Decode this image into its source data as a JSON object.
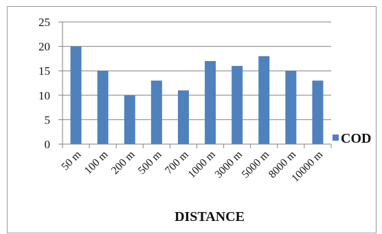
{
  "chart_data": {
    "type": "bar",
    "categories": [
      "50 m",
      "100 m",
      "200 m",
      "500 m",
      "700 m",
      "1000 m",
      "3000 m",
      "5000 m",
      "8000 m",
      "10000 m"
    ],
    "series": [
      {
        "name": "COD",
        "values": [
          20,
          15,
          10,
          13,
          11,
          17,
          16,
          18,
          15,
          13
        ],
        "color": "#4f81bd"
      }
    ],
    "xlabel": "DISTANCE",
    "ylabel": "",
    "ylim": [
      0,
      25
    ],
    "yticks": [
      "0",
      "5",
      "10",
      "15",
      "20",
      "25"
    ],
    "grid": true,
    "legend_position": "right"
  }
}
